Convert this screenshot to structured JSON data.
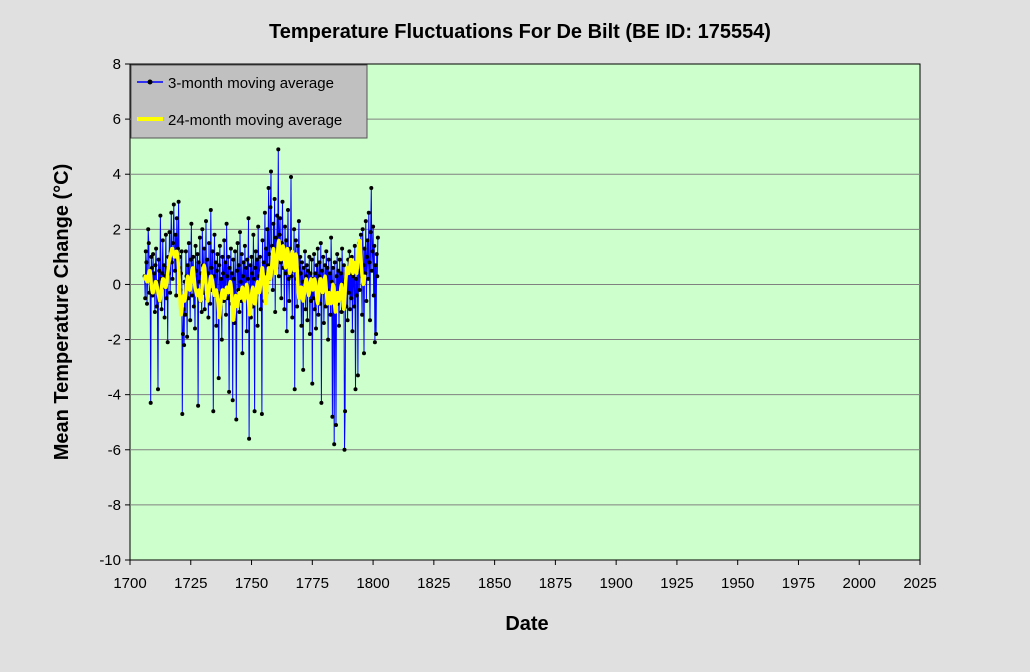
{
  "chart_data": {
    "type": "line",
    "title": "Temperature Fluctuations For De Bilt (BE ID: 175554)",
    "xlabel": "Date",
    "ylabel": "Mean  Temperature  Change  (°C)",
    "xlim": [
      1700,
      2025
    ],
    "ylim": [
      -10,
      8
    ],
    "x_ticks": [
      1700,
      1725,
      1750,
      1775,
      1800,
      1825,
      1850,
      1875,
      1900,
      1925,
      1950,
      1975,
      2000,
      2025
    ],
    "y_ticks": [
      -10,
      -8,
      -6,
      -4,
      -2,
      0,
      2,
      4,
      6,
      8
    ],
    "grid": "horizontal",
    "legend_position": "top-left",
    "colors": {
      "page_background": "#e0e0e0",
      "plot_background": "#ccffcc",
      "monthly_line": "#0000ff",
      "monthly_marker": "#000000",
      "smooth_line": "#ffff00",
      "legend_background": "#c0c0c0"
    },
    "series": [
      {
        "name": "3-month moving average",
        "style": "line-with-markers",
        "start_year": 1706.0,
        "step_years": 0.25,
        "values": [
          0.3,
          -0.5,
          1.2,
          0.8,
          -0.7,
          0.2,
          2.0,
          1.5,
          -0.3,
          0.5,
          -4.3,
          1.0,
          0.6,
          -0.4,
          1.1,
          -0.2,
          0.4,
          -1.0,
          0.7,
          1.3,
          -0.8,
          0.1,
          -3.8,
          0.9,
          0.5,
          -0.6,
          2.5,
          0.2,
          -0.9,
          0.4,
          1.6,
          -0.1,
          0.7,
          -1.2,
          0.3,
          1.8,
          -0.5,
          0.6,
          -2.1,
          1.0,
          0.4,
          1.9,
          -0.3,
          1.2,
          2.6,
          0.8,
          0.2,
          1.5,
          2.9,
          1.1,
          0.5,
          1.8,
          -0.4,
          2.4,
          0.9,
          1.3,
          3.0,
          0.6,
          1.0,
          -0.2,
          0.4,
          1.2,
          -4.7,
          -1.8,
          -0.9,
          -2.2,
          0.1,
          -1.1,
          1.2,
          0.3,
          -1.9,
          0.7,
          -0.5,
          1.5,
          0.2,
          -1.3,
          0.9,
          2.2,
          -0.4,
          0.6,
          1.0,
          -0.8,
          0.3,
          -1.6,
          1.4,
          0.5,
          -0.2,
          1.1,
          -4.4,
          0.8,
          0.1,
          1.7,
          -0.6,
          0.4,
          -1.0,
          2.0,
          0.7,
          -0.3,
          1.3,
          -0.9,
          0.2,
          2.3,
          -0.5,
          0.9,
          0.4,
          -1.2,
          1.5,
          0.0,
          -0.7,
          2.7,
          0.6,
          -0.2,
          1.2,
          -4.6,
          0.3,
          1.8,
          -0.4,
          0.8,
          -1.5,
          0.5,
          1.1,
          -0.3,
          -3.4,
          0.7,
          1.4,
          -0.8,
          0.2,
          -2.0,
          1.0,
          0.4,
          -0.6,
          1.6,
          -0.2,
          0.8,
          -1.1,
          2.2,
          0.3,
          -0.5,
          1.0,
          -3.9,
          0.6,
          -0.1,
          1.3,
          -0.7,
          0.4,
          -4.2,
          0.9,
          0.2,
          -1.4,
          1.2,
          -0.4,
          -4.9,
          0.5,
          1.5,
          -0.2,
          0.7,
          -1.0,
          1.9,
          0.1,
          -0.6,
          1.1,
          -2.5,
          0.3,
          0.8,
          -0.5,
          1.4,
          -0.1,
          0.6,
          -1.7,
          0.9,
          0.2,
          2.4,
          -5.6,
          -0.3,
          0.7,
          -1.2,
          1.0,
          0.4,
          -0.8,
          1.8,
          0.2,
          -4.6,
          0.6,
          1.2,
          -0.4,
          0.9,
          -1.5,
          2.1,
          0.3,
          -0.2,
          1.0,
          -0.9,
          0.5,
          -4.7,
          1.6,
          0.1,
          0.8,
          -0.6,
          2.6,
          0.4,
          1.3,
          -0.3,
          2.0,
          0.7,
          3.5,
          1.1,
          0.2,
          2.8,
          4.1,
          0.5,
          1.4,
          -0.2,
          2.2,
          0.9,
          3.1,
          -1.0,
          1.7,
          0.6,
          2.5,
          1.0,
          4.9,
          0.3,
          1.8,
          2.4,
          0.8,
          -0.5,
          1.5,
          3.0,
          0.6,
          1.2,
          -0.9,
          2.1,
          0.4,
          1.6,
          -1.7,
          1.0,
          2.7,
          0.2,
          -0.6,
          1.3,
          0.8,
          3.9,
          0.3,
          -1.2,
          1.1,
          0.5,
          2.0,
          -3.8,
          0.9,
          1.6,
          0.2,
          -0.8,
          1.4,
          0.6,
          2.3,
          -0.3,
          1.0,
          0.4,
          -1.5,
          0.8,
          0.1,
          -3.1,
          0.6,
          -0.4,
          1.2,
          -0.9,
          0.3,
          0.7,
          -1.3,
          0.5,
          -0.2,
          1.0,
          -1.8,
          0.4,
          -0.6,
          0.9,
          -3.6,
          0.2,
          -0.5,
          1.1,
          -0.9,
          0.4,
          -1.6,
          0.7,
          -0.1,
          1.3,
          -1.1,
          0.3,
          0.8,
          -0.7,
          1.5,
          -4.3,
          0.5,
          -0.3,
          1.0,
          -1.4,
          0.2,
          0.7,
          -0.8,
          1.2,
          -0.2,
          0.6,
          -2.0,
          0.9,
          -0.5,
          0.4,
          -1.1,
          1.7,
          0.1,
          -4.8,
          0.6,
          -0.4,
          -5.8,
          0.8,
          -0.9,
          -5.1,
          0.3,
          1.1,
          -0.7,
          0.5,
          -1.5,
          0.9,
          -0.2,
          0.4,
          -1.0,
          1.3,
          0.0,
          -0.6,
          0.7,
          -6.0,
          -4.6,
          0.2,
          -0.8,
          0.5,
          -1.3,
          0.9,
          -0.3,
          1.2,
          -0.9,
          0.4,
          -0.5,
          1.0,
          -1.7,
          0.3,
          0.6,
          -0.8,
          1.4,
          -3.8,
          0.2,
          -0.4,
          0.8,
          -3.3,
          0.5,
          1.5,
          -0.2,
          0.9,
          1.8,
          0.3,
          -1.1,
          2.0,
          0.7,
          -2.5,
          1.3,
          0.4,
          2.3,
          -0.6,
          1.0,
          1.6,
          0.2,
          2.6,
          0.8,
          -1.3,
          1.9,
          3.5,
          0.5,
          1.2,
          2.1,
          -0.4,
          1.4,
          -2.1,
          0.7,
          -1.8,
          1.1,
          0.3,
          1.7
        ]
      },
      {
        "name": "24-month moving average",
        "style": "thick-line",
        "start_year": 1706.0,
        "step_years": 0.25,
        "values": [
          0.2,
          0.3,
          0.3,
          0.2,
          0.1,
          0.1,
          0.2,
          0.4,
          0.5,
          0.5,
          0.3,
          0.0,
          -0.2,
          -0.3,
          -0.3,
          -0.2,
          -0.1,
          0.0,
          0.1,
          0.1,
          0.0,
          -0.1,
          -0.3,
          -0.4,
          -0.5,
          -0.6,
          -0.5,
          -0.3,
          -0.1,
          0.1,
          0.2,
          0.2,
          0.1,
          0.0,
          -0.1,
          -0.1,
          0.0,
          0.2,
          0.4,
          0.6,
          0.8,
          0.9,
          1.0,
          1.1,
          1.2,
          1.3,
          1.3,
          1.2,
          1.1,
          1.0,
          1.0,
          1.1,
          1.2,
          1.2,
          1.1,
          0.9,
          0.6,
          0.2,
          -0.3,
          -0.8,
          -1.1,
          -1.0,
          -0.7,
          -0.5,
          -0.4,
          -0.5,
          -0.6,
          -0.5,
          -0.3,
          0.0,
          0.2,
          0.3,
          0.2,
          0.0,
          -0.2,
          -0.2,
          0.0,
          0.3,
          0.5,
          0.6,
          0.6,
          0.4,
          0.1,
          -0.1,
          -0.2,
          -0.3,
          -0.4,
          -0.4,
          -0.3,
          -0.2,
          -0.3,
          -0.5,
          -0.6,
          -0.5,
          -0.3,
          0.0,
          0.4,
          0.6,
          0.7,
          0.6,
          0.3,
          0.0,
          -0.3,
          -0.5,
          -0.6,
          -0.4,
          -0.2,
          0.0,
          0.2,
          0.3,
          0.3,
          0.2,
          0.1,
          -0.1,
          -0.3,
          -0.4,
          -0.4,
          -0.3,
          -0.2,
          -0.3,
          -0.5,
          -0.7,
          -1.0,
          -1.2,
          -1.1,
          -0.8,
          -0.5,
          -0.3,
          -0.2,
          -0.2,
          -0.4,
          -0.5,
          -0.5,
          -0.3,
          -0.2,
          -0.1,
          -0.1,
          -0.2,
          -0.3,
          -0.2,
          0.0,
          0.1,
          0.0,
          -0.2,
          -0.6,
          -1.0,
          -1.3,
          -1.2,
          -0.9,
          -0.6,
          -0.4,
          -0.5,
          -0.7,
          -0.8,
          -0.6,
          -0.4,
          -0.3,
          -0.4,
          -0.5,
          -0.4,
          -0.2,
          -0.1,
          -0.3,
          -0.5,
          -0.6,
          -0.5,
          -0.3,
          -0.1,
          0.0,
          -0.1,
          -0.3,
          -0.6,
          -0.9,
          -1.1,
          -1.0,
          -0.7,
          -0.4,
          -0.2,
          -0.1,
          -0.2,
          -0.5,
          -0.7,
          -0.7,
          -0.5,
          -0.2,
          0.0,
          0.1,
          0.0,
          -0.2,
          -0.3,
          -0.2,
          0.1,
          0.4,
          0.6,
          0.6,
          0.4,
          0.1,
          -0.2,
          -0.5,
          -0.7,
          -0.6,
          -0.3,
          0.1,
          0.4,
          0.6,
          0.6,
          0.4,
          0.2,
          0.3,
          0.6,
          0.9,
          1.2,
          1.3,
          1.1,
          0.8,
          0.5,
          0.4,
          0.6,
          0.9,
          1.2,
          1.5,
          1.6,
          1.4,
          1.1,
          0.9,
          0.9,
          1.1,
          1.3,
          1.4,
          1.3,
          1.0,
          0.7,
          0.6,
          0.8,
          1.1,
          1.3,
          1.2,
          0.9,
          0.6,
          0.4,
          0.5,
          0.8,
          1.1,
          1.2,
          1.0,
          0.7,
          0.5,
          0.6,
          0.9,
          1.1,
          1.0,
          0.6,
          0.1,
          -0.3,
          -0.5,
          -0.5,
          -0.3,
          -0.1,
          -0.1,
          -0.3,
          -0.5,
          -0.6,
          -0.5,
          -0.3,
          -0.1,
          0.1,
          0.2,
          0.1,
          -0.1,
          -0.3,
          -0.4,
          -0.3,
          -0.1,
          0.1,
          0.2,
          0.1,
          -0.1,
          -0.2,
          -0.1,
          0.1,
          0.2,
          0.1,
          -0.1,
          -0.4,
          -0.6,
          -0.7,
          -0.5,
          -0.2,
          0.1,
          0.2,
          0.2,
          0.0,
          -0.2,
          -0.3,
          -0.2,
          0.0,
          0.2,
          0.3,
          0.1,
          -0.2,
          -0.5,
          -0.7,
          -0.6,
          -0.4,
          -0.3,
          -0.4,
          -0.6,
          -0.7,
          -0.5,
          -0.2,
          0.0,
          -0.1,
          -0.4,
          -0.8,
          -1.0,
          -0.8,
          -0.5,
          -0.3,
          -0.3,
          -0.5,
          -0.6,
          -0.5,
          -0.3,
          -0.1,
          0.0,
          -0.2,
          -0.5,
          -0.8,
          -0.9,
          -0.7,
          -0.3,
          0.1,
          0.4,
          0.6,
          0.6,
          0.5,
          0.4,
          0.5,
          0.7,
          0.9,
          0.9,
          0.7,
          0.5,
          0.4,
          0.5,
          0.7,
          0.8,
          0.7,
          0.5,
          0.4,
          0.6,
          0.9,
          1.2,
          1.5,
          1.6,
          1.4,
          1.0,
          0.6,
          0.3,
          0.1,
          0.0,
          0.1,
          0.3
        ]
      }
    ]
  }
}
